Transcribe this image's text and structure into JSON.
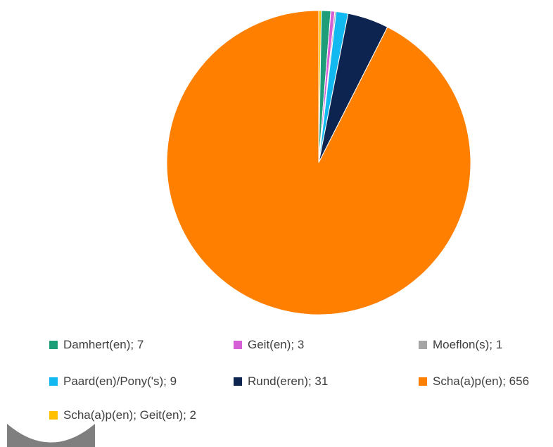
{
  "chart_data": {
    "type": "pie",
    "title": "",
    "slices": [
      {
        "label": "Scha(a)p(en); Geit(en); 2",
        "value": 2,
        "color": "#FFC000"
      },
      {
        "label": "Damhert(en); 7",
        "value": 7,
        "color": "#1E9E78"
      },
      {
        "label": "Geit(en); 3",
        "value": 3,
        "color": "#D55FD5"
      },
      {
        "label": "Moeflon(s); 1",
        "value": 1,
        "color": "#A5A5A5"
      },
      {
        "label": "Paard(en)/Pony('s); 9",
        "value": 9,
        "color": "#12B8F0"
      },
      {
        "label": "Rund(eren); 31",
        "value": 31,
        "color": "#0D2350"
      },
      {
        "label": "Scha(a)p(en); 656",
        "value": 656,
        "color": "#FF7F00"
      }
    ],
    "legend": {
      "placement": "bottom",
      "entries": [
        {
          "label": "Damhert(en); 7",
          "color": "#1E9E78"
        },
        {
          "label": "Geit(en); 3",
          "color": "#D55FD5"
        },
        {
          "label": "Moeflon(s); 1",
          "color": "#A5A5A5"
        },
        {
          "label": "Paard(en)/Pony('s); 9",
          "color": "#12B8F0"
        },
        {
          "label": "Rund(eren); 31",
          "color": "#0D2350"
        },
        {
          "label": "Scha(a)p(en); 656",
          "color": "#FF7F00"
        },
        {
          "label": "Scha(a)p(en); Geit(en); 2",
          "color": "#FFC000"
        }
      ]
    }
  },
  "decor_color": "#7F7F7F"
}
